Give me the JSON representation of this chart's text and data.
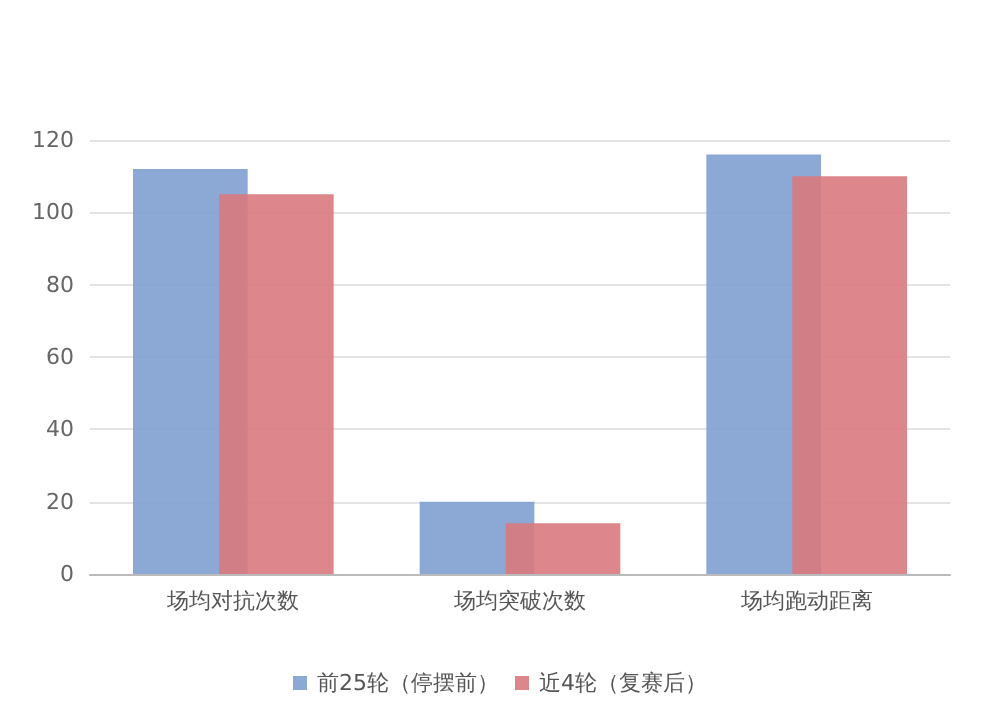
{
  "chart_data": {
    "type": "bar",
    "categories": [
      "场均对抗次数",
      "场均突破次数",
      "场均跑动距离"
    ],
    "series": [
      {
        "name": "前25轮（停摆前）",
        "color": "#7f9fd0",
        "values": [
          112,
          20,
          116
        ]
      },
      {
        "name": "近4轮（复赛后）",
        "color": "#d9797e",
        "values": [
          105,
          14,
          110
        ]
      }
    ],
    "ylim": [
      0,
      120
    ],
    "yticks": [
      0,
      20,
      40,
      60,
      80,
      100,
      120
    ],
    "grid": "y",
    "legend": "bottom"
  }
}
